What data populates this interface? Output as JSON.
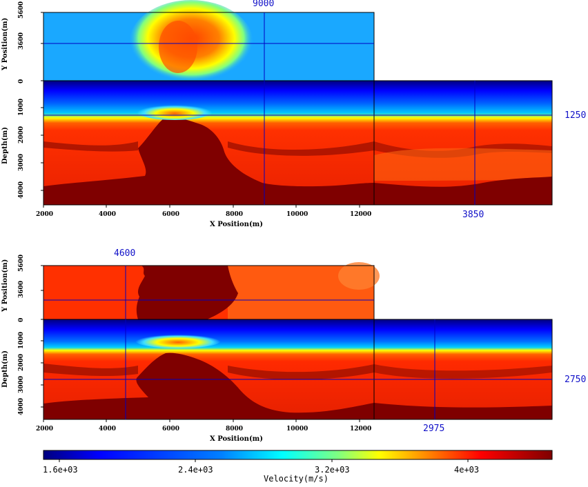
{
  "colormap": [
    "#00007f",
    "#0000ff",
    "#0080ff",
    "#00ffff",
    "#80ff80",
    "#ffff00",
    "#ff8000",
    "#ff0000",
    "#7f0000"
  ],
  "panels": [
    {
      "top_view": {
        "ylabel": "Y Position(m)",
        "yticks": [
          "5600",
          "3600",
          "0"
        ]
      },
      "section": {
        "ylabel": "Depth(m)",
        "yticks": [
          "1000",
          "2000",
          "3000",
          "4000"
        ],
        "xlabel": "X Position(m)",
        "xticks": [
          "2000",
          "4000",
          "6000",
          "8000",
          "10000",
          "12000"
        ]
      },
      "markers": {
        "x": "9000",
        "depth": "1250",
        "y": "3850"
      }
    },
    {
      "top_view": {
        "ylabel": "Y Position(m)",
        "yticks": [
          "5600",
          "3600",
          "0"
        ]
      },
      "section": {
        "ylabel": "Depth(m)",
        "yticks": [
          "1000",
          "2000",
          "3000",
          "4000"
        ],
        "xlabel": "X Position(m)",
        "xticks": [
          "2000",
          "4000",
          "6000",
          "8000",
          "10000",
          "12000"
        ]
      },
      "markers": {
        "x": "4600",
        "depth": "2750",
        "y": "2975"
      }
    }
  ],
  "colorbar": {
    "ticks": [
      "1.6e+03",
      "2.4e+03",
      "3.2e+03",
      "4e+03"
    ],
    "label": "Velocity(m/s)"
  },
  "chart_data": [
    {
      "type": "heatmap",
      "view": "3D velocity cube, cross-sections at X=9000 m, Y=3850 m, depth=1250 m",
      "xlabel": "X Position(m)",
      "ylabel": "Depth(m)",
      "xlim": [
        2000,
        12500
      ],
      "depth_lim": [
        0,
        4500
      ],
      "ylim_top": [
        0,
        5600
      ],
      "slice_x": 9000,
      "slice_y": 3850,
      "slice_depth": 1250,
      "value_label": "Velocity(m/s)",
      "value_range": [
        1500,
        4500
      ]
    },
    {
      "type": "heatmap",
      "view": "3D velocity cube, cross-sections at X=4600 m, Y=2975 m, depth=2750 m",
      "xlabel": "X Position(m)",
      "ylabel": "Depth(m)",
      "xlim": [
        2000,
        12500
      ],
      "depth_lim": [
        0,
        4500
      ],
      "ylim_top": [
        0,
        5600
      ],
      "slice_x": 4600,
      "slice_y": 2975,
      "slice_depth": 2750,
      "value_label": "Velocity(m/s)",
      "value_range": [
        1500,
        4500
      ]
    }
  ]
}
